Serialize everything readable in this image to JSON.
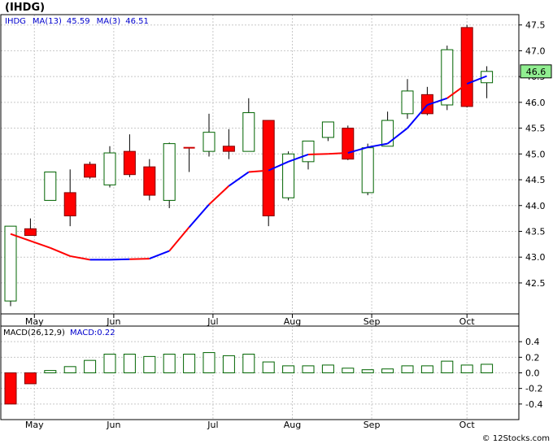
{
  "chart_data": [
    {
      "type": "candlestick",
      "title": "(IHDG)",
      "legend": [
        {
          "text": "IHDG",
          "color": "#0000cc"
        },
        {
          "text": "MA(13)",
          "color": "#0000cc"
        },
        {
          "text": "45.59",
          "color": "#0000cc"
        },
        {
          "text": "MA(3)",
          "color": "#0000cc"
        },
        {
          "text": "46.51",
          "color": "#0000cc"
        }
      ],
      "last_price_label": "46.6",
      "ylim": [
        41.9,
        47.7
      ],
      "y_ticks": [
        "42.5",
        "43.0",
        "43.5",
        "44.0",
        "44.5",
        "45.0",
        "45.5",
        "46.0",
        "46.5",
        "47.0",
        "47.5"
      ],
      "x_ticks": [
        {
          "label": "May",
          "index": 1.2
        },
        {
          "label": "Jun",
          "index": 5.2
        },
        {
          "label": "Jul",
          "index": 10.2
        },
        {
          "label": "Aug",
          "index": 14.2
        },
        {
          "label": "Sep",
          "index": 18.2
        },
        {
          "label": "Oct",
          "index": 23.0
        }
      ],
      "candles": [
        {
          "o": 42.15,
          "h": 43.6,
          "l": 42.05,
          "c": 43.6
        },
        {
          "o": 43.55,
          "h": 43.75,
          "l": 43.42,
          "c": 43.42
        },
        {
          "o": 44.1,
          "h": 44.65,
          "l": 44.1,
          "c": 44.65
        },
        {
          "o": 44.25,
          "h": 44.7,
          "l": 43.6,
          "c": 43.8
        },
        {
          "o": 44.8,
          "h": 44.85,
          "l": 44.52,
          "c": 44.55
        },
        {
          "o": 44.4,
          "h": 45.15,
          "l": 44.35,
          "c": 45.02
        },
        {
          "o": 45.05,
          "h": 45.38,
          "l": 44.55,
          "c": 44.6
        },
        {
          "o": 44.75,
          "h": 44.9,
          "l": 44.1,
          "c": 44.2
        },
        {
          "o": 44.1,
          "h": 45.22,
          "l": 43.95,
          "c": 45.2
        },
        {
          "o": 45.12,
          "h": 45.12,
          "l": 44.65,
          "c": 45.1
        },
        {
          "o": 45.05,
          "h": 45.78,
          "l": 44.95,
          "c": 45.42
        },
        {
          "o": 45.15,
          "h": 45.48,
          "l": 44.9,
          "c": 45.05
        },
        {
          "o": 45.05,
          "h": 46.08,
          "l": 45.05,
          "c": 45.8
        },
        {
          "o": 45.65,
          "h": 45.65,
          "l": 43.6,
          "c": 43.8
        },
        {
          "o": 44.15,
          "h": 45.05,
          "l": 44.1,
          "c": 45.0
        },
        {
          "o": 44.85,
          "h": 45.25,
          "l": 44.7,
          "c": 45.25
        },
        {
          "o": 45.32,
          "h": 45.62,
          "l": 45.25,
          "c": 45.62
        },
        {
          "o": 45.5,
          "h": 45.55,
          "l": 44.88,
          "c": 44.9
        },
        {
          "o": 44.25,
          "h": 45.2,
          "l": 44.2,
          "c": 45.12
        },
        {
          "o": 45.15,
          "h": 45.82,
          "l": 45.15,
          "c": 45.65
        },
        {
          "o": 45.78,
          "h": 46.45,
          "l": 45.68,
          "c": 46.22
        },
        {
          "o": 46.15,
          "h": 46.3,
          "l": 45.75,
          "c": 45.78
        },
        {
          "o": 45.95,
          "h": 47.1,
          "l": 45.85,
          "c": 47.02
        },
        {
          "o": 47.45,
          "h": 47.5,
          "l": 45.9,
          "c": 45.92
        },
        {
          "o": 46.38,
          "h": 46.7,
          "l": 46.08,
          "c": 46.6
        }
      ],
      "ma3": [
        43.45,
        null,
        43.18,
        43.02,
        42.95,
        42.95,
        42.96,
        42.97,
        43.12,
        43.58,
        44.02,
        44.38,
        44.65,
        44.68,
        44.85,
        44.99,
        45.0,
        45.02,
        45.13,
        45.2,
        45.5,
        45.95,
        46.08,
        46.36,
        46.51
      ],
      "ma3_colors": [
        "#ff0000",
        "#0000ff",
        "#ff0000",
        "#ff0000",
        "#ff0000",
        "#0000ff",
        "#0000ff",
        "#ff0000",
        "#0000ff",
        "#ff0000",
        "#0000ff",
        "#ff0000",
        "#0000ff",
        "#ff0000",
        "#0000ff",
        "#0000ff",
        "#ff0000",
        "#ff0000",
        "#0000ff",
        "#0000ff",
        "#0000ff",
        "#0000ff",
        "#0000ff",
        "#ff0000",
        "#0000ff"
      ],
      "ma13": [
        null,
        null,
        null,
        null,
        null,
        null,
        null,
        null,
        null,
        null,
        null,
        null,
        null,
        null,
        null,
        null,
        null,
        null,
        null,
        null,
        null,
        null,
        null,
        null,
        45.59
      ]
    },
    {
      "type": "bar",
      "title": "MACD(26,12,9)",
      "legend": [
        {
          "text": "MACD(26,12,9)",
          "color": "#000000"
        },
        {
          "text": "MACD:0.22",
          "color": "#0000cc"
        }
      ],
      "ylim": [
        -0.6,
        0.6
      ],
      "y_ticks": [
        "0.4",
        "0.2",
        "0.0",
        "-0.2",
        "-0.4"
      ],
      "values": [
        -0.4,
        -0.14,
        0.03,
        0.08,
        0.16,
        0.24,
        0.24,
        0.21,
        0.24,
        0.24,
        0.26,
        0.22,
        0.24,
        0.14,
        0.09,
        0.09,
        0.1,
        0.06,
        0.04,
        0.05,
        0.09,
        0.09,
        0.15,
        0.1,
        0.11
      ]
    }
  ],
  "footer": {
    "copyright": "© 12Stocks.com"
  }
}
